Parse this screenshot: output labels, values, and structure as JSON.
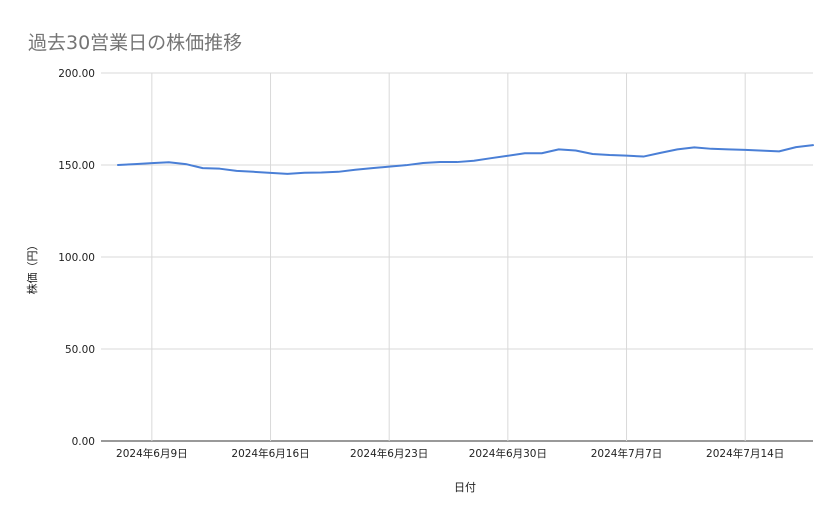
{
  "title": "過去30営業日の株価推移",
  "colors": {
    "line": "#4a7fd6",
    "grid": "#d9d9d9",
    "axis": "#333333",
    "title": "#757575"
  },
  "chart_data": {
    "type": "line",
    "title": "過去30営業日の株価推移",
    "xlabel": "日付",
    "ylabel": "株価（円）",
    "ylim": [
      0,
      200
    ],
    "yticks": [
      0,
      50,
      100,
      150,
      200
    ],
    "ytick_labels": [
      "0.00",
      "50.00",
      "100.00",
      "150.00",
      "200.00"
    ],
    "xlim": [
      "2024-06-06",
      "2024-07-18"
    ],
    "xticks": [
      "2024-06-09",
      "2024-06-16",
      "2024-06-23",
      "2024-06-30",
      "2024-07-07",
      "2024-07-14"
    ],
    "xtick_labels": [
      "2024年6月9日",
      "2024年6月16日",
      "2024年6月23日",
      "2024年6月30日",
      "2024年7月7日",
      "2024年7月14日"
    ],
    "grid": true,
    "series": [
      {
        "x": [
          "2024-06-07",
          "2024-06-08",
          "2024-06-09",
          "2024-06-10",
          "2024-06-11",
          "2024-06-12",
          "2024-06-13",
          "2024-06-14",
          "2024-06-15",
          "2024-06-16",
          "2024-06-17",
          "2024-06-18",
          "2024-06-19",
          "2024-06-20",
          "2024-06-21",
          "2024-06-22",
          "2024-06-23",
          "2024-06-24",
          "2024-06-25",
          "2024-06-26",
          "2024-06-27",
          "2024-06-28",
          "2024-06-29",
          "2024-06-30",
          "2024-07-01",
          "2024-07-02",
          "2024-07-03",
          "2024-07-04",
          "2024-07-05",
          "2024-07-06",
          "2024-07-07",
          "2024-07-08",
          "2024-07-09",
          "2024-07-10",
          "2024-07-11",
          "2024-07-12",
          "2024-07-13",
          "2024-07-14",
          "2024-07-15",
          "2024-07-16",
          "2024-07-17",
          "2024-07-18"
        ],
        "values": [
          150.0,
          150.5,
          151.0,
          151.5,
          150.5,
          148.3,
          148.0,
          146.8,
          146.3,
          145.7,
          145.2,
          145.8,
          145.9,
          146.3,
          147.4,
          148.3,
          149.1,
          149.9,
          151.1,
          151.6,
          151.6,
          152.3,
          153.7,
          155.0,
          156.4,
          156.4,
          158.5,
          157.9,
          156.0,
          155.4,
          155.1,
          154.6,
          156.6,
          158.5,
          159.6,
          158.8,
          158.5,
          158.2,
          157.8,
          157.4,
          159.7,
          160.8
        ]
      }
    ]
  }
}
